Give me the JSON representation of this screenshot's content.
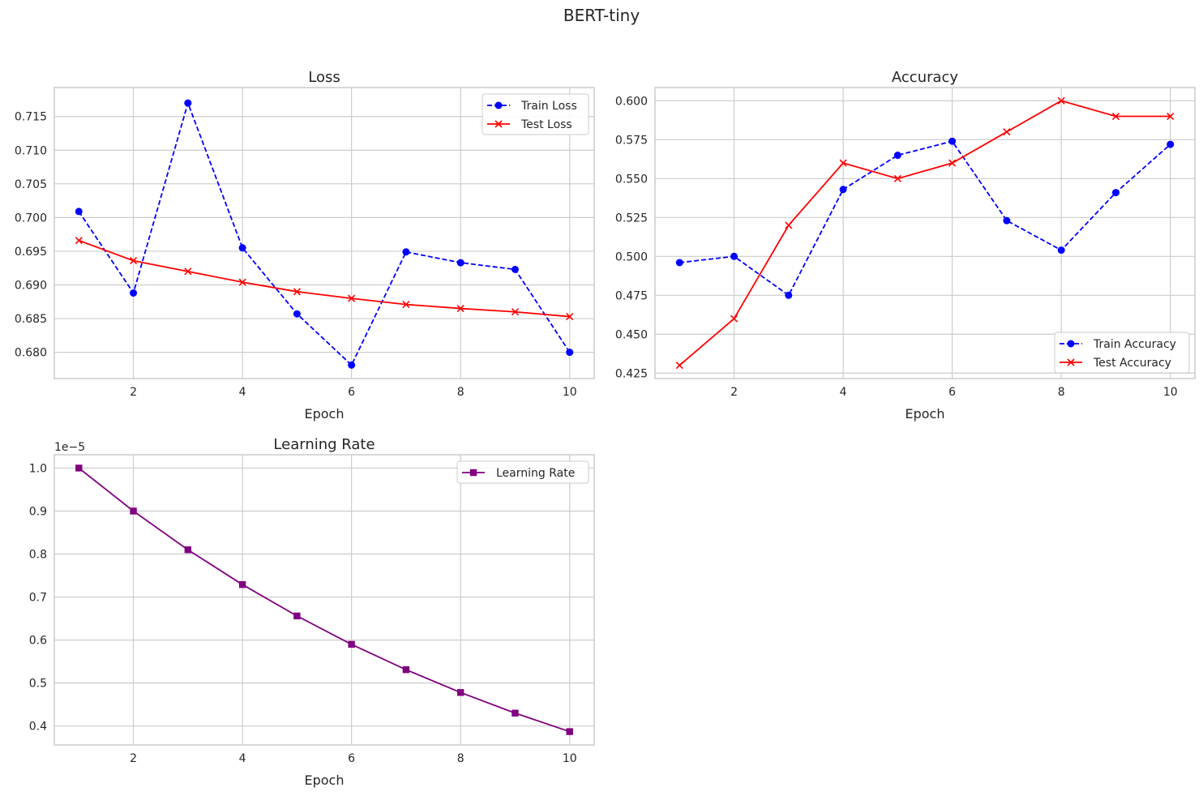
{
  "figure": {
    "title": "BERT-tiny"
  },
  "chart_data": [
    {
      "id": "loss",
      "type": "line",
      "title": "Loss",
      "xlabel": "Epoch",
      "ylabel": "",
      "xlim": [
        0.55,
        10.45
      ],
      "ylim": [
        0.6761,
        0.7193
      ],
      "xticks": [
        2,
        4,
        6,
        8,
        10
      ],
      "yticks": [
        0.68,
        0.685,
        0.69,
        0.695,
        0.7,
        0.705,
        0.71,
        0.715
      ],
      "ytick_labels": [
        "0.680",
        "0.685",
        "0.690",
        "0.695",
        "0.700",
        "0.705",
        "0.710",
        "0.715"
      ],
      "y_offset_text": "",
      "grid": true,
      "legend_position": "upper right",
      "x": [
        1,
        2,
        3,
        4,
        5,
        6,
        7,
        8,
        9,
        10
      ],
      "series": [
        {
          "name": "Train Loss",
          "color": "#0000ff",
          "linestyle": "dashed",
          "marker": "circle",
          "values": [
            0.7009,
            0.6888,
            0.717,
            0.6955,
            0.6857,
            0.6781,
            0.6949,
            0.6933,
            0.6923,
            0.68
          ]
        },
        {
          "name": "Test Loss",
          "color": "#ff0000",
          "linestyle": "solid",
          "marker": "x",
          "values": [
            0.6966,
            0.6936,
            0.692,
            0.6904,
            0.689,
            0.688,
            0.6871,
            0.6865,
            0.686,
            0.6853
          ]
        }
      ]
    },
    {
      "id": "accuracy",
      "type": "line",
      "title": "Accuracy",
      "xlabel": "Epoch",
      "ylabel": "",
      "xlim": [
        0.55,
        10.45
      ],
      "ylim": [
        0.4215,
        0.6085
      ],
      "xticks": [
        2,
        4,
        6,
        8,
        10
      ],
      "yticks": [
        0.425,
        0.45,
        0.475,
        0.5,
        0.525,
        0.55,
        0.575,
        0.6
      ],
      "ytick_labels": [
        "0.425",
        "0.450",
        "0.475",
        "0.500",
        "0.525",
        "0.550",
        "0.575",
        "0.600"
      ],
      "y_offset_text": "",
      "grid": true,
      "legend_position": "lower right",
      "x": [
        1,
        2,
        3,
        4,
        5,
        6,
        7,
        8,
        9,
        10
      ],
      "series": [
        {
          "name": "Train Accuracy",
          "color": "#0000ff",
          "linestyle": "dashed",
          "marker": "circle",
          "values": [
            0.496,
            0.5,
            0.475,
            0.543,
            0.565,
            0.574,
            0.523,
            0.504,
            0.541,
            0.572
          ]
        },
        {
          "name": "Test Accuracy",
          "color": "#ff0000",
          "linestyle": "solid",
          "marker": "x",
          "values": [
            0.43,
            0.46,
            0.52,
            0.56,
            0.55,
            0.56,
            0.58,
            0.6,
            0.59,
            0.59
          ]
        }
      ]
    },
    {
      "id": "lr",
      "type": "line",
      "title": "Learning Rate",
      "xlabel": "Epoch",
      "ylabel": "",
      "xlim": [
        0.55,
        10.45
      ],
      "ylim": [
        0.356,
        1.031
      ],
      "xticks": [
        2,
        4,
        6,
        8,
        10
      ],
      "yticks": [
        0.4,
        0.5,
        0.6,
        0.7,
        0.8,
        0.9,
        1.0
      ],
      "ytick_labels": [
        "0.4",
        "0.5",
        "0.6",
        "0.7",
        "0.8",
        "0.9",
        "1.0"
      ],
      "y_offset_text": "1e−5",
      "grid": true,
      "legend_position": "upper right",
      "x": [
        1,
        2,
        3,
        4,
        5,
        6,
        7,
        8,
        9,
        10
      ],
      "series": [
        {
          "name": "Learning Rate",
          "color": "#800080",
          "linestyle": "solid",
          "marker": "square",
          "values": [
            1.0,
            0.9,
            0.81,
            0.729,
            0.656,
            0.59,
            0.531,
            0.478,
            0.43,
            0.387
          ]
        }
      ]
    }
  ]
}
